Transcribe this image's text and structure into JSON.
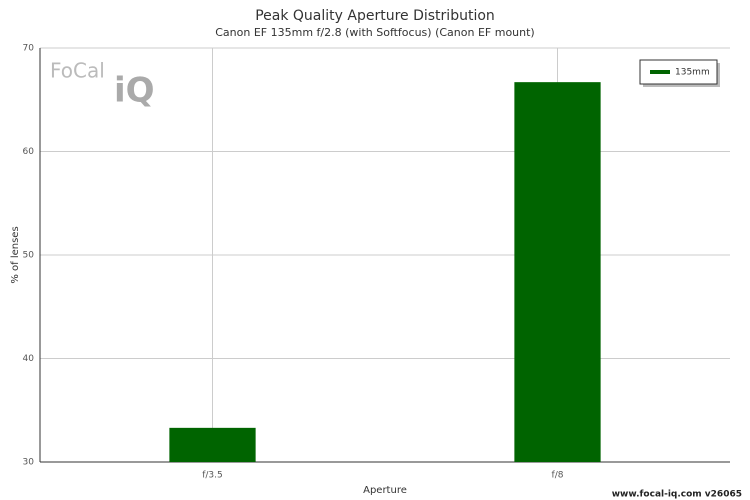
{
  "chart_data": {
    "type": "bar",
    "title": "Peak Quality Aperture Distribution",
    "subtitle": "Canon EF 135mm f/2.8 (with Softfocus) (Canon EF mount)",
    "x_label": "Aperture",
    "y_label": "% of lenses",
    "categories": [
      "f/3.5",
      "f/8"
    ],
    "series": [
      {
        "name": "135mm",
        "color": "#006400",
        "values": [
          33.3,
          66.7
        ]
      }
    ],
    "ylim": [
      30,
      70
    ],
    "yticks": [
      30,
      40,
      50,
      60,
      70
    ],
    "grid": true,
    "legend": "top-right",
    "logo": [
      "FoCal",
      "iQ"
    ],
    "footer": "www.focal-iq.com  v26065"
  }
}
